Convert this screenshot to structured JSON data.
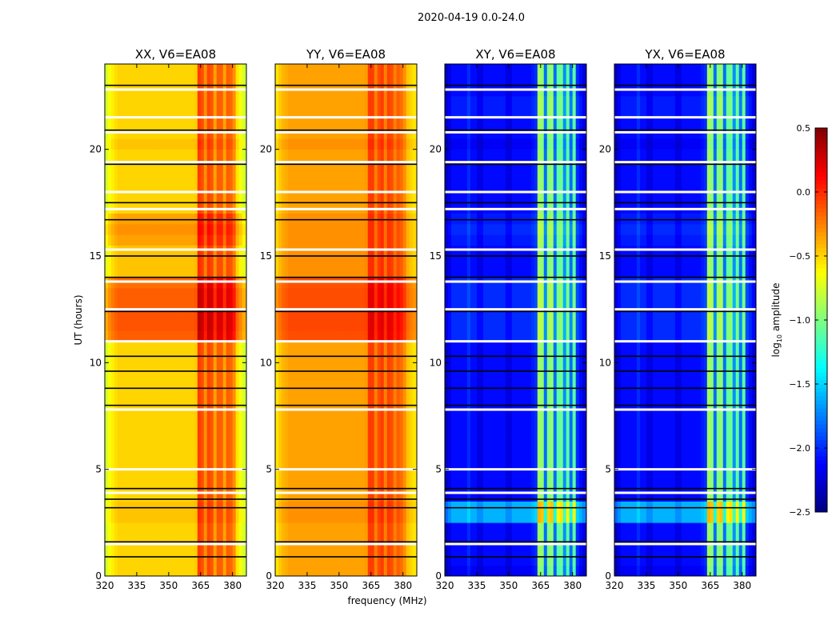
{
  "chart_data": {
    "type": "heatmap",
    "title": "2020-04-19 0.0-24.0",
    "xlabel": "frequency (MHz)",
    "ylabel": "UT (hours)",
    "xlim": [
      320,
      386.5
    ],
    "ylim": [
      0,
      24
    ],
    "xticks": [
      "320",
      "335",
      "350",
      "365",
      "380"
    ],
    "xtick_values": [
      320,
      335,
      350,
      365,
      380
    ],
    "yticks": [
      "0",
      "5",
      "10",
      "15",
      "20"
    ],
    "ytick_values": [
      0,
      5,
      10,
      15,
      20
    ],
    "freq_bin_mhz": 1.5,
    "time_bin_hours": 0.5,
    "flagged_hours_white": [
      1.5,
      3.9,
      5.0,
      7.8,
      11.0,
      12.5,
      13.8,
      15.3,
      17.2,
      18.0,
      19.4,
      20.8,
      21.5,
      22.8
    ],
    "black_line_hours": [
      0.9,
      1.6,
      3.2,
      3.6,
      4.1,
      8.0,
      8.8,
      9.6,
      10.3,
      12.4,
      14.0,
      15.0,
      16.7,
      17.5,
      19.3,
      20.9,
      23.0
    ],
    "panels": [
      {
        "title": "XX, V6=EA08",
        "time_base": [
          -0.5,
          -0.5,
          -0.5,
          -0.5,
          -0.5,
          -0.45,
          -0.45,
          -0.5,
          -0.5,
          -0.5,
          -0.5,
          -0.5,
          -0.5,
          -0.5,
          -0.5,
          -0.5,
          -0.5,
          -0.5,
          -0.5,
          -0.5,
          -0.5,
          -0.5,
          -0.15,
          -0.12,
          -0.12,
          -0.15,
          -0.15,
          -0.2,
          -0.45,
          -0.45,
          -0.45,
          -0.35,
          -0.3,
          -0.35,
          -0.5,
          -0.5,
          -0.5,
          -0.5,
          -0.5,
          -0.5,
          -0.45,
          -0.5,
          -0.5,
          -0.5,
          -0.5,
          -0.5,
          -0.5,
          -0.5
        ],
        "freq_profile": [
          -0.25,
          -0.15,
          -0.08,
          -0.03,
          0,
          0,
          0,
          0,
          0,
          0,
          0,
          0,
          0,
          0,
          0,
          0,
          0,
          0,
          0,
          0,
          0,
          0,
          0,
          0,
          0,
          0,
          0,
          0,
          0.02,
          0.45,
          0.4,
          0.2,
          0.42,
          0.38,
          0.15,
          0.35,
          0.35,
          0.15,
          0.35,
          0.32,
          0.2,
          -0.05,
          -0.15,
          -0.25,
          -0.3
        ]
      },
      {
        "title": "YY, V6=EA08",
        "time_base": [
          -0.35,
          -0.35,
          -0.35,
          -0.35,
          -0.35,
          -0.3,
          -0.3,
          -0.35,
          -0.35,
          -0.35,
          -0.35,
          -0.35,
          -0.35,
          -0.35,
          -0.35,
          -0.35,
          -0.35,
          -0.35,
          -0.35,
          -0.35,
          -0.35,
          -0.35,
          -0.1,
          -0.08,
          -0.08,
          -0.1,
          -0.1,
          -0.12,
          -0.3,
          -0.3,
          -0.3,
          -0.3,
          -0.3,
          -0.3,
          -0.35,
          -0.35,
          -0.35,
          -0.35,
          -0.35,
          -0.35,
          -0.3,
          -0.35,
          -0.35,
          -0.35,
          -0.35,
          -0.35,
          -0.35,
          -0.35
        ],
        "freq_profile": [
          -0.2,
          -0.12,
          -0.06,
          -0.03,
          0,
          0,
          0,
          0,
          0,
          0,
          0,
          0,
          0,
          0,
          0,
          0,
          0,
          0,
          0,
          0,
          0,
          0,
          0,
          0,
          0,
          0,
          0,
          0,
          0.02,
          0.3,
          0.3,
          0.1,
          0.25,
          0.3,
          0.1,
          0.28,
          0.25,
          0.1,
          0.2,
          0.15,
          0.05,
          -0.1,
          -0.15,
          -0.2,
          -0.25
        ]
      },
      {
        "title": "XY, V6=EA08",
        "time_base": [
          -2.15,
          -2.1,
          -2.1,
          -2.1,
          -2.1,
          -1.6,
          -1.6,
          -2.1,
          -2.1,
          -2.1,
          -2.1,
          -2.1,
          -2.1,
          -2.1,
          -2.1,
          -2.1,
          -2.1,
          -2.1,
          -2.1,
          -2.1,
          -2.1,
          -2.1,
          -2.0,
          -2.0,
          -2.0,
          -2.0,
          -2.0,
          -2.0,
          -2.1,
          -2.1,
          -2.1,
          -2.05,
          -2.0,
          -2.05,
          -2.1,
          -2.1,
          -2.1,
          -2.1,
          -2.1,
          -2.1,
          -2.15,
          -2.1,
          -2.1,
          -2.05,
          -2.05,
          -2.1,
          -2.1,
          -2.1
        ],
        "freq_profile": [
          -0.2,
          -0.1,
          0,
          0,
          0,
          0,
          0,
          0.1,
          0,
          0,
          -0.1,
          -0.1,
          0,
          0,
          0,
          0,
          0,
          0,
          0,
          -0.1,
          -0.1,
          0,
          0,
          0,
          0,
          0,
          0,
          0.05,
          0.1,
          1.2,
          1.15,
          0.3,
          1.1,
          1.15,
          0.3,
          1.0,
          1.05,
          0.4,
          1.0,
          0.3,
          1.0,
          0.1,
          0,
          -0.1,
          -0.2
        ]
      },
      {
        "title": "YX, V6=EA08",
        "time_base": [
          -2.15,
          -2.1,
          -2.1,
          -2.1,
          -2.1,
          -1.6,
          -1.6,
          -2.1,
          -2.1,
          -2.1,
          -2.1,
          -2.1,
          -2.1,
          -2.1,
          -2.1,
          -2.1,
          -2.1,
          -2.1,
          -2.1,
          -2.1,
          -2.1,
          -2.1,
          -2.0,
          -2.0,
          -2.0,
          -2.0,
          -2.0,
          -2.0,
          -2.1,
          -2.1,
          -2.1,
          -2.05,
          -2.0,
          -2.05,
          -2.1,
          -2.1,
          -2.1,
          -2.1,
          -2.1,
          -2.1,
          -2.15,
          -2.1,
          -2.1,
          -2.05,
          -2.05,
          -2.1,
          -2.1,
          -2.1
        ],
        "freq_profile": [
          -0.2,
          -0.1,
          0,
          0,
          0,
          0,
          0,
          0.1,
          0,
          0,
          -0.1,
          -0.1,
          0,
          0,
          0,
          0,
          0,
          0,
          0,
          -0.1,
          -0.1,
          0,
          0,
          0,
          0,
          0,
          0,
          0.05,
          0.1,
          1.2,
          1.15,
          0.3,
          1.1,
          1.15,
          0.3,
          1.0,
          1.05,
          0.4,
          1.0,
          0.3,
          1.0,
          0.1,
          0,
          -0.1,
          -0.2
        ]
      }
    ],
    "colorbar": {
      "label": "log10 amplitude",
      "label_main": "log",
      "label_sub": "10",
      "label_rest": " amplitude",
      "range": [
        -2.5,
        0.5
      ],
      "ticks": [
        "0.5",
        "0.0",
        "−0.5",
        "−1.0",
        "−1.5",
        "−2.0",
        "−2.5"
      ],
      "tick_values": [
        0.5,
        0.0,
        -0.5,
        -1.0,
        -1.5,
        -2.0,
        -2.5
      ],
      "colormap": "jet"
    }
  }
}
